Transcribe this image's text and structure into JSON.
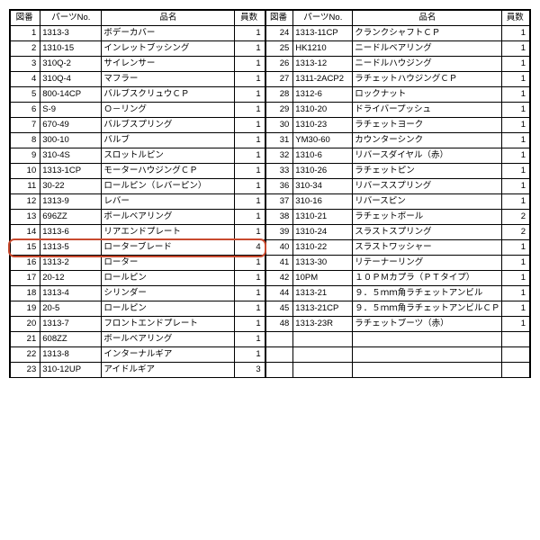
{
  "headers": {
    "idx": "図番",
    "part": "パーツNo.",
    "name": "品名",
    "qty": "員数"
  },
  "highlight": {
    "row_index": 15,
    "color": "#c84a2f"
  },
  "left": [
    {
      "i": "1",
      "p": "1313-3",
      "n": "ボデーカバー",
      "q": "1"
    },
    {
      "i": "2",
      "p": "1310-15",
      "n": "インレットブッシング",
      "q": "1"
    },
    {
      "i": "3",
      "p": "310Q-2",
      "n": "サイレンサー",
      "q": "1"
    },
    {
      "i": "4",
      "p": "310Q-4",
      "n": "マフラー",
      "q": "1"
    },
    {
      "i": "5",
      "p": "800-14CP",
      "n": "バルブスクリュウＣＰ",
      "q": "1"
    },
    {
      "i": "6",
      "p": "S-9",
      "n": "Ｏ－リング",
      "q": "1"
    },
    {
      "i": "7",
      "p": "670-49",
      "n": "バルブスプリング",
      "q": "1"
    },
    {
      "i": "8",
      "p": "300-10",
      "n": "バルブ",
      "q": "1"
    },
    {
      "i": "9",
      "p": "310-4S",
      "n": "スロットルピン",
      "q": "1"
    },
    {
      "i": "10",
      "p": "1313-1CP",
      "n": "モーターハウジングＣＰ",
      "q": "1"
    },
    {
      "i": "11",
      "p": "30-22",
      "n": "ロールピン（レバーピン）",
      "q": "1"
    },
    {
      "i": "12",
      "p": "1313-9",
      "n": "レバー",
      "q": "1"
    },
    {
      "i": "13",
      "p": "696ZZ",
      "n": "ボールベアリング",
      "q": "1"
    },
    {
      "i": "14",
      "p": "1313-6",
      "n": "リアエンドプレート",
      "q": "1"
    },
    {
      "i": "15",
      "p": "1313-5",
      "n": "ローターブレード",
      "q": "4"
    },
    {
      "i": "16",
      "p": "1313-2",
      "n": "ローター",
      "q": "1"
    },
    {
      "i": "17",
      "p": "20-12",
      "n": "ロールピン",
      "q": "1"
    },
    {
      "i": "18",
      "p": "1313-4",
      "n": "シリンダー",
      "q": "1"
    },
    {
      "i": "19",
      "p": "20-5",
      "n": "ロールピン",
      "q": "1"
    },
    {
      "i": "20",
      "p": "1313-7",
      "n": "フロントエンドプレート",
      "q": "1"
    },
    {
      "i": "21",
      "p": "608ZZ",
      "n": "ボールベアリング",
      "q": "1"
    },
    {
      "i": "22",
      "p": "1313-8",
      "n": "インターナルギア",
      "q": "1"
    },
    {
      "i": "23",
      "p": "310-12UP",
      "n": "アイドルギア",
      "q": "3"
    }
  ],
  "right": [
    {
      "i": "24",
      "p": "1313-11CP",
      "n": "クランクシャフトＣＰ",
      "q": "1"
    },
    {
      "i": "25",
      "p": "HK1210",
      "n": "ニードルベアリング",
      "q": "1"
    },
    {
      "i": "26",
      "p": "1313-12",
      "n": "ニードルハウジング",
      "q": "1"
    },
    {
      "i": "27",
      "p": "1311-2ACP2",
      "n": "ラチェットハウジングＣＰ",
      "q": "1"
    },
    {
      "i": "28",
      "p": "1312-6",
      "n": "ロックナット",
      "q": "1"
    },
    {
      "i": "29",
      "p": "1310-20",
      "n": "ドライバープッシュ",
      "q": "1"
    },
    {
      "i": "30",
      "p": "1310-23",
      "n": "ラチェットヨーク",
      "q": "1"
    },
    {
      "i": "31",
      "p": "YM30-60",
      "n": "カウンターシンク",
      "q": "1"
    },
    {
      "i": "32",
      "p": "1310-6",
      "n": "リバースダイヤル（赤）",
      "q": "1"
    },
    {
      "i": "33",
      "p": "1310-26",
      "n": "ラチェットピン",
      "q": "1"
    },
    {
      "i": "36",
      "p": "310-34",
      "n": "リバーススプリング",
      "q": "1"
    },
    {
      "i": "37",
      "p": "310-16",
      "n": "リバースピン",
      "q": "1"
    },
    {
      "i": "38",
      "p": "1310-21",
      "n": "ラチェットボール",
      "q": "2"
    },
    {
      "i": "39",
      "p": "1310-24",
      "n": "スラストスプリング",
      "q": "2"
    },
    {
      "i": "40",
      "p": "1310-22",
      "n": "スラストワッシャー",
      "q": "1"
    },
    {
      "i": "41",
      "p": "1313-30",
      "n": "リテーナーリング",
      "q": "1"
    },
    {
      "i": "42",
      "p": "10PM",
      "n": "１０ＰＭカプラ（ＰＴタイプ）",
      "q": "1"
    },
    {
      "i": "44",
      "p": "1313-21",
      "n": "９．５ｍｍ角ラチェットアンビル",
      "q": "1"
    },
    {
      "i": "45",
      "p": "1313-21CP",
      "n": "９．５ｍｍ角ラチェットアンビルＣＰ",
      "q": "1"
    },
    {
      "i": "48",
      "p": "1313-23R",
      "n": "ラチェットブーツ（赤）",
      "q": "1"
    },
    {
      "i": "",
      "p": "",
      "n": "",
      "q": ""
    },
    {
      "i": "",
      "p": "",
      "n": "",
      "q": ""
    },
    {
      "i": "",
      "p": "",
      "n": "",
      "q": ""
    }
  ]
}
